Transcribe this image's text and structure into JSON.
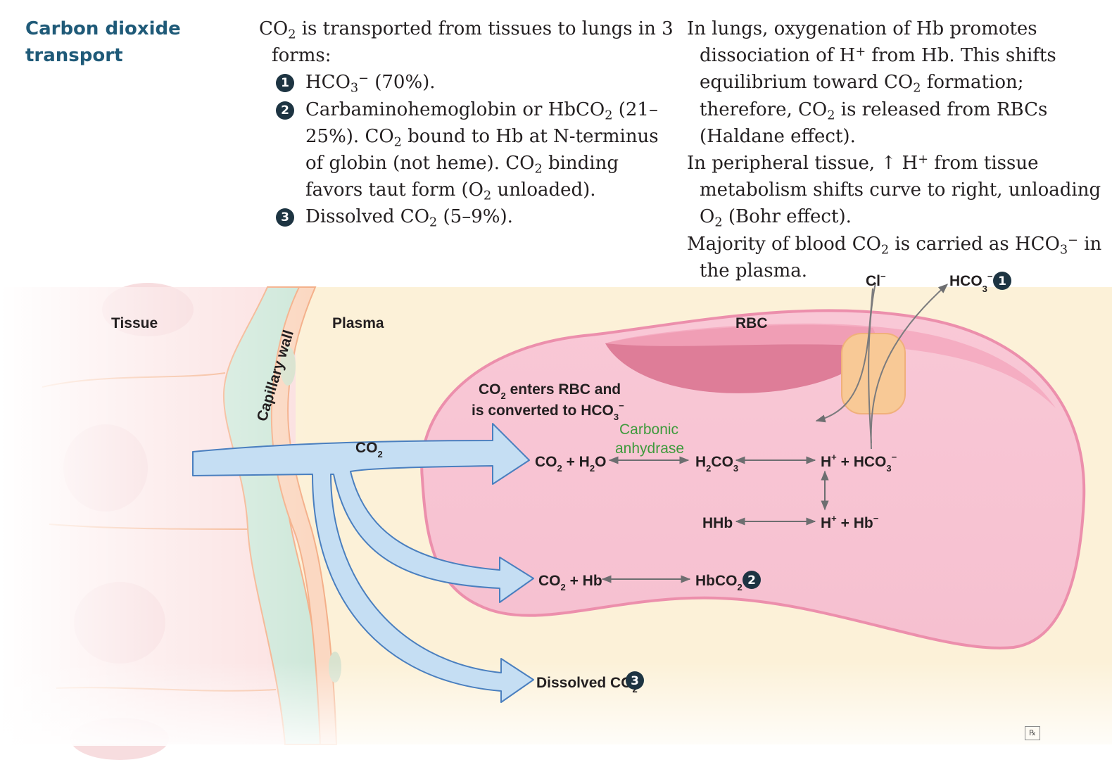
{
  "title": {
    "line1": "Carbon dioxide",
    "line2": "transport"
  },
  "left": {
    "intro_a": "CO",
    "intro_sub": "2",
    "intro_b": " is transported from tissues to lungs in 3 forms:",
    "items": [
      {
        "num": "1",
        "a": "HCO",
        "s1": "3",
        "sup": "−",
        "b": " (70%)."
      },
      {
        "num": "2",
        "a": "Carbaminohemoglobin or HbCO",
        "s1": "2",
        "b": " (21–25%). CO",
        "s2": "2",
        "c": " bound to Hb at N-terminus of globin (not heme). CO",
        "s3": "2",
        "d": " binding favors taut form (O",
        "s4": "2",
        "e": " unloaded)."
      },
      {
        "num": "3",
        "a": "Dissolved CO",
        "s1": "2",
        "b": " (5–9%)."
      }
    ]
  },
  "right": {
    "p1": {
      "a": "In lungs, oxygenation of Hb promotes dissociation of H",
      "sup": "+",
      "b": " from Hb. This shifts equilibrium toward CO",
      "s1": "2",
      "c": " formation; therefore, CO",
      "s2": "2",
      "d": " is released from RBCs (Haldane effect)."
    },
    "p2": {
      "a": "In peripheral tissue, ",
      "arrow": "↑",
      "b": " H",
      "sup": "+",
      "c": " from tissue metabolism shifts curve to right, unloading O",
      "s1": "2",
      "d": " (Bohr effect)."
    },
    "p3": {
      "a": "Majority of blood CO",
      "s1": "2",
      "b": " is carried as HCO",
      "s2": "3",
      "sup": "−",
      "c": " in the plasma."
    }
  },
  "diagram": {
    "tissue": "Tissue",
    "capillary_wall": "Capillary wall",
    "plasma": "Plasma",
    "rbc": "RBC",
    "cl": "Cl",
    "cl_sup": "−",
    "hco3_out": {
      "a": "HCO",
      "sub": "3",
      "sup": "−",
      "num": "1"
    },
    "co2": {
      "a": "CO",
      "sub": "2"
    },
    "enters_line1": {
      "a": "CO",
      "sub": "2",
      "b": " enters RBC and"
    },
    "enters_line2": {
      "a": "is converted to HCO",
      "sub": "3",
      "sup": "−"
    },
    "enzyme_line1": "Carbonic",
    "enzyme_line2": "anhydrase",
    "r1_left": {
      "a": "CO",
      "s1": "2",
      "b": " + H",
      "s2": "2",
      "c": "O"
    },
    "r1_mid": {
      "a": "H",
      "s1": "2",
      "b": "CO",
      "s2": "3"
    },
    "r1_right": {
      "a": "H",
      "sup1": "+",
      "b": " + HCO",
      "sub": "3",
      "sup2": "−"
    },
    "r2_left": "HHb",
    "r2_right": {
      "a": "H",
      "sup1": "+",
      "b": " + Hb",
      "sup2": "−"
    },
    "r3_left": {
      "a": "CO",
      "sub": "2",
      "b": " + Hb"
    },
    "r3_right": {
      "a": "HbCO",
      "sub": "2",
      "num": "2"
    },
    "dissolved": {
      "a": "Dissolved CO",
      "sub": "2",
      "num": "3"
    }
  },
  "logo": "℞",
  "colors": {
    "heading": "#1f5a78",
    "badge": "#1d3442",
    "enzyme": "#3e9a3c",
    "arrow_fill": "#c5def3",
    "arrow_stroke": "#4a7fbf",
    "rbc": "#f7c6d4"
  }
}
